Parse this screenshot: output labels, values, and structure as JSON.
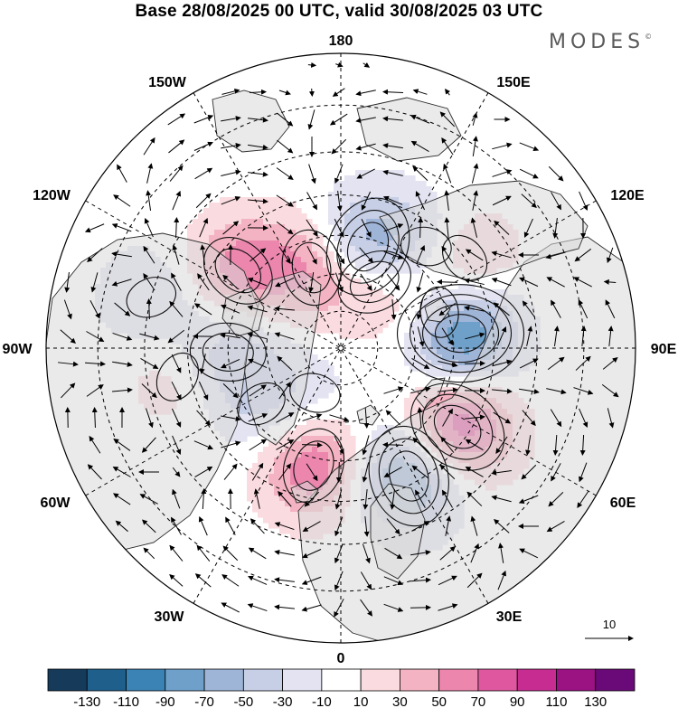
{
  "title": "Base 28/08/2025 00 UTC, valid 30/08/2025 03 UTC",
  "brand": "MODES",
  "brand_mark": "©",
  "longitude_labels": {
    "top": "180",
    "w150": "150W",
    "e150": "150E",
    "w120": "120W",
    "e120": "120E",
    "w90": "90W",
    "e90": "90E",
    "w60": "60W",
    "e60": "60E",
    "w30": "30W",
    "e30": "30E",
    "bottom": "0"
  },
  "reference_vector": {
    "label": "10"
  },
  "colorbar": {
    "levels": [
      "-130",
      "-110",
      "-90",
      "-70",
      "-50",
      "-30",
      "-10",
      "10",
      "30",
      "50",
      "70",
      "90",
      "110",
      "130"
    ],
    "colors": [
      "#153a5a",
      "#1f5f8b",
      "#3b83b5",
      "#6ea0c9",
      "#9fb5d8",
      "#c7cfe6",
      "#e3e3f2",
      "#ffffff",
      "#fadbe0",
      "#f4b3c2",
      "#ec86ad",
      "#df579e",
      "#c72d91",
      "#9b1283",
      "#6a0a78"
    ]
  },
  "field": {
    "anomalies": [
      {
        "name": "canada-low",
        "lon": -97,
        "lat": 58,
        "value": -115
      },
      {
        "name": "atlantic-high",
        "lon": -56,
        "lat": 53,
        "value": 95
      },
      {
        "name": "iceland-low",
        "lon": -28,
        "lat": 52,
        "value": -85
      },
      {
        "name": "scandinavia-high",
        "lon": 13,
        "lat": 58,
        "value": 70
      },
      {
        "name": "west-siberia-low",
        "lon": 55,
        "lat": 64,
        "value": -30
      },
      {
        "name": "central-siberia-low",
        "lon": 88,
        "lat": 60,
        "value": -45
      },
      {
        "name": "yakutia-high",
        "lon": 127,
        "lat": 56,
        "value": 60
      },
      {
        "name": "chukotka-high",
        "lon": 160,
        "lat": 67,
        "value": 50
      },
      {
        "name": "bering-low",
        "lon": -165,
        "lat": 62,
        "value": -80
      },
      {
        "name": "beaufort-high",
        "lon": -153,
        "lat": 70,
        "value": 45
      },
      {
        "name": "gulf-alaska-low",
        "lon": -140,
        "lat": 55,
        "value": -30
      },
      {
        "name": "pacific-ne-high",
        "lon": -126,
        "lat": 50,
        "value": 40
      },
      {
        "name": "canada-ridge",
        "lon": -110,
        "lat": 62,
        "value": 35
      },
      {
        "name": "central-asia-high",
        "lon": 80,
        "lat": 47,
        "value": 25
      },
      {
        "name": "north-pacific-low",
        "lon": 105,
        "lat": 40,
        "value": -30
      },
      {
        "name": "arctic-trough",
        "lon": 30,
        "lat": 76,
        "value": -15
      }
    ]
  }
}
